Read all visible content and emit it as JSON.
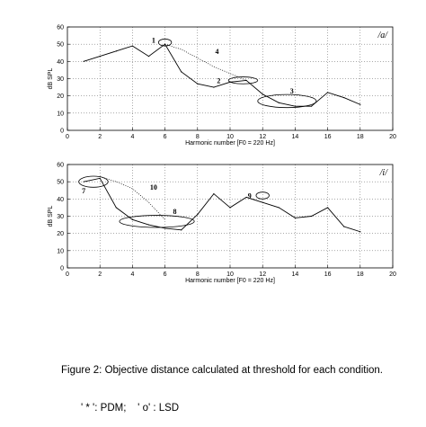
{
  "chart_data": [
    {
      "type": "line",
      "vowel_label": "/a/",
      "xlabel": "Harmonic number [F0 = 220 Hz]",
      "ylabel": "dB SPL",
      "xlim": [
        0,
        20
      ],
      "ylim": [
        0,
        60
      ],
      "xticks": [
        0,
        2,
        4,
        6,
        8,
        10,
        12,
        14,
        16,
        18,
        20
      ],
      "yticks": [
        0,
        10,
        20,
        30,
        40,
        50,
        60
      ],
      "grid": true,
      "series": [
        {
          "x": [
            1,
            2,
            3,
            4,
            5,
            6,
            7,
            8,
            9,
            10,
            11,
            12,
            13,
            14,
            15,
            16,
            17,
            18
          ],
          "values": [
            40,
            43,
            46,
            49,
            43,
            50,
            34,
            27,
            25,
            28,
            29,
            21,
            16,
            14,
            14,
            22,
            19,
            15
          ]
        }
      ],
      "pdm_line": {
        "x": [
          6,
          7,
          8,
          9,
          10,
          11
        ],
        "values": [
          50,
          47,
          42,
          37,
          33,
          29
        ]
      },
      "annotations": [
        {
          "text": "1",
          "x": 6,
          "y": 51,
          "ellipse_rx": 0.4,
          "ellipse_ry": 2,
          "label_x": 5.3,
          "label_y": 52.5
        },
        {
          "text": "4",
          "x": 9.2,
          "y": 46,
          "label_x": 9.2,
          "label_y": 46
        },
        {
          "text": "2",
          "x": 10.8,
          "y": 29,
          "ellipse_rx": 0.9,
          "ellipse_ry": 2,
          "label_x": 9.3,
          "label_y": 29
        },
        {
          "text": "3",
          "x": 13.5,
          "y": 17,
          "ellipse_rx": 1.8,
          "ellipse_ry": 3.8,
          "label_x": 13.8,
          "label_y": 23
        }
      ]
    },
    {
      "type": "line",
      "vowel_label": "/i/",
      "xlabel": "Harmonic number [F0 = 220 Hz]",
      "ylabel": "dB SPL",
      "xlim": [
        0,
        20
      ],
      "ylim": [
        0,
        60
      ],
      "xticks": [
        0,
        2,
        4,
        6,
        8,
        10,
        12,
        14,
        16,
        18,
        20
      ],
      "yticks": [
        0,
        10,
        20,
        30,
        40,
        50,
        60
      ],
      "grid": true,
      "series": [
        {
          "x": [
            1,
            2,
            3,
            4,
            5,
            6,
            7,
            8,
            9,
            10,
            11,
            12,
            13,
            14,
            15,
            16,
            17,
            18
          ],
          "values": [
            50,
            52,
            35,
            28,
            25,
            23,
            22,
            31,
            43,
            35,
            41,
            38,
            35,
            29,
            30,
            35,
            24,
            21
          ]
        }
      ],
      "pdm_line": {
        "x": [
          2,
          3,
          4,
          5,
          6
        ],
        "values": [
          53,
          50,
          46,
          38,
          28
        ]
      },
      "annotations": [
        {
          "text": "7",
          "x": 1.6,
          "y": 50,
          "ellipse_rx": 0.9,
          "ellipse_ry": 3.2,
          "label_x": 1.0,
          "label_y": 45
        },
        {
          "text": "10",
          "x": 5.3,
          "y": 47,
          "label_x": 5.3,
          "label_y": 47
        },
        {
          "text": "8",
          "x": 5.5,
          "y": 27,
          "ellipse_rx": 2.3,
          "ellipse_ry": 3.5,
          "label_x": 6.6,
          "label_y": 33
        },
        {
          "text": "9",
          "x": 12,
          "y": 42,
          "ellipse_rx": 0.4,
          "ellipse_ry": 2,
          "label_x": 11.2,
          "label_y": 42
        }
      ]
    }
  ],
  "caption": {
    "line1": "Figure 2: Objective distance calculated at threshold for each condition.",
    "line2": "' * ': PDM;    ' o' : LSD"
  }
}
